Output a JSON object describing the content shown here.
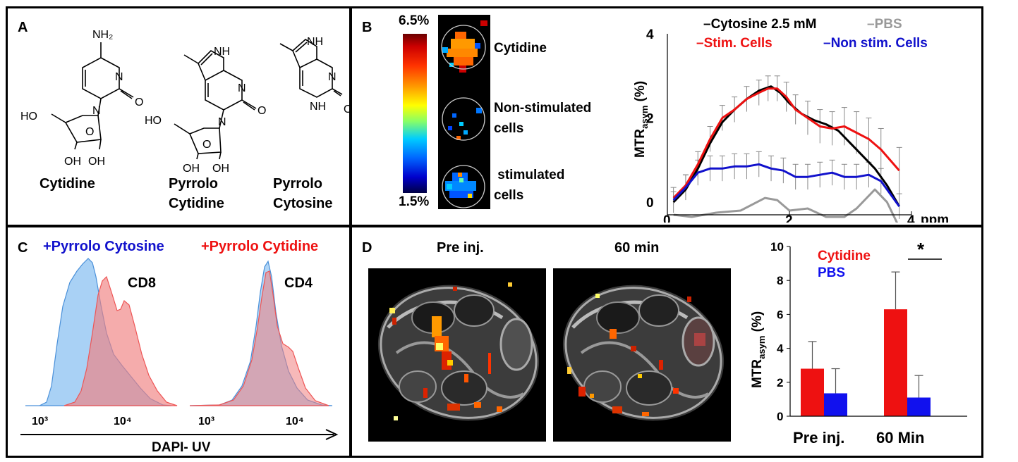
{
  "panelA": {
    "label": "A",
    "compounds": [
      {
        "name": "Cytidine"
      },
      {
        "name_line1": "Pyrrolo",
        "name_line2": "Cytidine"
      },
      {
        "name_line1": "Pyrrolo",
        "name_line2": "Cytosine"
      }
    ]
  },
  "panelB": {
    "label": "B",
    "colorbar": {
      "max": "6.5%",
      "min": "1.5%"
    },
    "images": [
      {
        "label": "Cytidine"
      },
      {
        "label_line1": "Non-stimulated",
        "label_line2": "cells"
      },
      {
        "label_line1": " stimulated",
        "label_line2": "cells"
      }
    ]
  },
  "panelC": {
    "label": "C",
    "legend_blue": "+Pyrrolo Cytosine",
    "legend_red": "+Pyrrolo Cytidine",
    "plot1_title": "CD8",
    "plot2_title": "CD4",
    "tick_1e3": "10³",
    "tick_1e4": "10⁴",
    "xlabel": "DAPI- UV"
  },
  "panelD": {
    "label": "D",
    "img1_title": "Pre inj.",
    "img2_title": "60 min"
  },
  "chart_data": [
    {
      "id": "B-line",
      "type": "line",
      "ylabel": "MTR",
      "ylabel_sub": "asym",
      "ylabel_suffix": " (%)",
      "xlabel": "ppm",
      "xlim": [
        0,
        4
      ],
      "ylim": [
        -0.3,
        4
      ],
      "xticks": [
        "0",
        "2",
        "4"
      ],
      "yticks": [
        "0",
        "2",
        "4"
      ],
      "legend": [
        "–Cytosine 2.5 mM",
        "–PBS",
        "–Stim. Cells",
        "–Non stim. Cells"
      ],
      "series": [
        {
          "name": "Cytosine 2.5 mM",
          "color": "#000000",
          "x": [
            0.1,
            0.3,
            0.5,
            0.7,
            0.9,
            1.1,
            1.3,
            1.5,
            1.7,
            1.85,
            2.0,
            2.2,
            2.4,
            2.6,
            2.8,
            3.0,
            3.2,
            3.4,
            3.6,
            3.8
          ],
          "y": [
            0.0,
            0.3,
            0.8,
            1.4,
            1.9,
            2.2,
            2.45,
            2.65,
            2.75,
            2.6,
            2.35,
            2.1,
            1.95,
            1.85,
            1.7,
            1.4,
            1.1,
            0.8,
            0.4,
            -0.1
          ]
        },
        {
          "name": "Stim. Cells",
          "color": "#ee1111",
          "x": [
            0.1,
            0.3,
            0.5,
            0.7,
            0.9,
            1.1,
            1.3,
            1.5,
            1.65,
            1.8,
            1.95,
            2.1,
            2.3,
            2.5,
            2.7,
            2.9,
            3.1,
            3.3,
            3.5,
            3.8
          ],
          "y": [
            0.1,
            0.4,
            0.9,
            1.5,
            2.0,
            2.2,
            2.45,
            2.6,
            2.7,
            2.7,
            2.5,
            2.2,
            2.0,
            1.8,
            1.75,
            1.8,
            1.65,
            1.5,
            1.25,
            0.75
          ],
          "error": [
            0.15,
            0.25,
            0.3,
            0.3,
            0.3,
            0.3,
            0.3,
            0.3,
            0.3,
            0.3,
            0.35,
            0.35,
            0.4,
            0.4,
            0.4,
            0.45,
            0.5,
            0.5,
            0.5,
            0.55
          ]
        },
        {
          "name": "Non stim. Cells",
          "color": "#1111cc",
          "x": [
            0.1,
            0.3,
            0.5,
            0.7,
            0.9,
            1.1,
            1.3,
            1.5,
            1.7,
            1.9,
            2.1,
            2.3,
            2.5,
            2.7,
            2.9,
            3.1,
            3.3,
            3.5,
            3.8
          ],
          "y": [
            0.05,
            0.35,
            0.7,
            0.8,
            0.8,
            0.85,
            0.85,
            0.9,
            0.8,
            0.75,
            0.6,
            0.6,
            0.65,
            0.7,
            0.6,
            0.6,
            0.65,
            0.5,
            -0.1
          ],
          "error": [
            0.3,
            0.3,
            0.3,
            0.3,
            0.3,
            0.3,
            0.3,
            0.3,
            0.3,
            0.3,
            0.3,
            0.3,
            0.3,
            0.3,
            0.3,
            0.3,
            0.3,
            0.3,
            0.3
          ]
        },
        {
          "name": "PBS",
          "color": "#999999",
          "x": [
            0.1,
            0.4,
            0.8,
            1.2,
            1.6,
            1.8,
            2.0,
            2.3,
            2.6,
            2.9,
            3.1,
            3.4,
            3.6,
            3.8
          ],
          "y": [
            -0.3,
            -0.35,
            -0.25,
            -0.2,
            0.1,
            0.05,
            -0.2,
            -0.15,
            -0.35,
            -0.35,
            -0.15,
            0.3,
            0.0,
            -0.6
          ]
        }
      ]
    },
    {
      "id": "D-bar",
      "type": "bar",
      "categories": [
        "Pre inj.",
        "60 Min"
      ],
      "series": [
        {
          "name": "Cytidine",
          "color": "#ee1111",
          "values": [
            2.8,
            6.3
          ],
          "error": [
            1.6,
            2.2
          ]
        },
        {
          "name": "PBS",
          "color": "#1111ee",
          "values": [
            1.35,
            1.1
          ],
          "error": [
            1.45,
            1.3
          ]
        }
      ],
      "ylim": [
        0,
        10
      ],
      "yticks": [
        "0",
        "2",
        "4",
        "6",
        "8",
        "10"
      ],
      "ylabel": "MTR",
      "ylabel_sub": "asym",
      "ylabel_suffix": " (%)",
      "significance": "*"
    }
  ]
}
